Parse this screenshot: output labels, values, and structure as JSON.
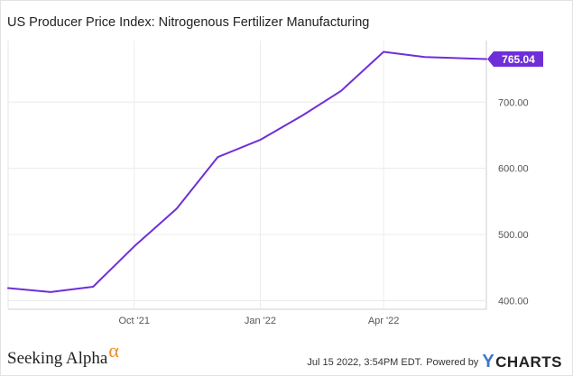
{
  "chart_data": {
    "type": "line",
    "title": "US Producer Price Index: Nitrogenous Fertilizer Manufacturing",
    "series": [
      {
        "color": "#6f2fd8",
        "x": [
          "2021-07",
          "2021-08",
          "2021-09",
          "2021-10",
          "2021-11",
          "2021-12",
          "2022-01",
          "2022-02",
          "2022-03",
          "2022-04",
          "2022-05",
          "2022-06"
        ],
        "values": [
          419,
          413,
          421,
          482,
          539,
          617,
          643,
          680,
          717,
          776,
          768,
          765.04
        ]
      }
    ],
    "x_ticks": [
      {
        "date": "2021-10",
        "label": "Oct '21"
      },
      {
        "date": "2022-01",
        "label": "Jan '22"
      },
      {
        "date": "2022-04",
        "label": "Apr '22"
      }
    ],
    "y_ticks": [
      {
        "value": 400,
        "label": "400.00"
      },
      {
        "value": 500,
        "label": "500.00"
      },
      {
        "value": 600,
        "label": "600.00"
      },
      {
        "value": 700,
        "label": "700.00"
      }
    ],
    "ylim": [
      387,
      793
    ],
    "last_value_label": "765.04",
    "grid": true
  },
  "footer": {
    "brand_name": "Seeking Alpha",
    "brand_symbol": "α",
    "timestamp": "Jul 15 2022, 3:54PM EDT.",
    "powered_by": "Powered by",
    "provider_logo_y": "Y",
    "provider_logo_rest": "CHARTS",
    "accent": "#f28a22",
    "logo_color": "#3c78c8"
  }
}
